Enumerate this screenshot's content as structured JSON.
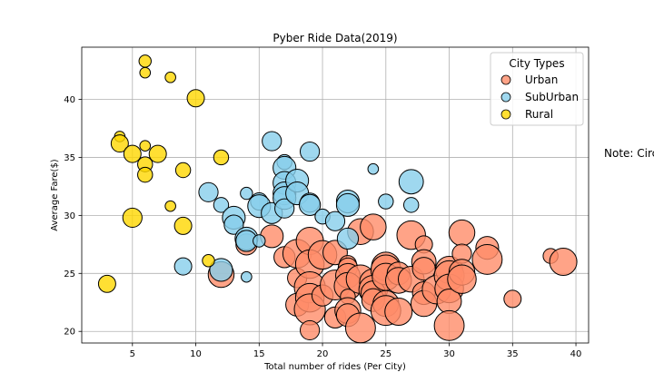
{
  "chart_data": {
    "type": "scatter",
    "title": "Pyber Ride Data(2019)",
    "xlabel": "Total number of rides (Per City)",
    "ylabel": "Average Fare($)",
    "xlim": [
      1,
      41
    ],
    "ylim": [
      19,
      44.5
    ],
    "xticks": [
      5,
      10,
      15,
      20,
      25,
      30,
      35,
      40
    ],
    "yticks": [
      20,
      25,
      30,
      35,
      40
    ],
    "grid": true,
    "legend_title": "City Types",
    "legend_position": "top-right",
    "note": "Note: Circ",
    "series": [
      {
        "name": "Urban",
        "color": "#FF8C69",
        "points": [
          {
            "x": 12,
            "y": 24.9,
            "s": 9
          },
          {
            "x": 14,
            "y": 27.5,
            "s": 6
          },
          {
            "x": 16,
            "y": 28.2,
            "s": 7
          },
          {
            "x": 17,
            "y": 26.4,
            "s": 6
          },
          {
            "x": 18,
            "y": 26.7,
            "s": 11
          },
          {
            "x": 18,
            "y": 24.6,
            "s": 5
          },
          {
            "x": 18,
            "y": 22.3,
            "s": 7
          },
          {
            "x": 19,
            "y": 27.8,
            "s": 10
          },
          {
            "x": 19,
            "y": 25.8,
            "s": 11
          },
          {
            "x": 19,
            "y": 23.8,
            "s": 13
          },
          {
            "x": 19,
            "y": 22.9,
            "s": 11
          },
          {
            "x": 19,
            "y": 21.9,
            "s": 13
          },
          {
            "x": 19,
            "y": 20.1,
            "s": 5
          },
          {
            "x": 20,
            "y": 26.6,
            "s": 11
          },
          {
            "x": 20,
            "y": 23.1,
            "s": 6
          },
          {
            "x": 21,
            "y": 26.8,
            "s": 8
          },
          {
            "x": 21,
            "y": 24.0,
            "s": 12
          },
          {
            "x": 21,
            "y": 21.2,
            "s": 6
          },
          {
            "x": 22,
            "y": 25.8,
            "s": 4
          },
          {
            "x": 22,
            "y": 25.5,
            "s": 5
          },
          {
            "x": 22,
            "y": 24.8,
            "s": 8
          },
          {
            "x": 22,
            "y": 23.9,
            "s": 10
          },
          {
            "x": 22,
            "y": 23.0,
            "s": 3
          },
          {
            "x": 22,
            "y": 21.8,
            "s": 9
          },
          {
            "x": 22,
            "y": 21.4,
            "s": 7
          },
          {
            "x": 23,
            "y": 28.6,
            "s": 9
          },
          {
            "x": 23,
            "y": 24.5,
            "s": 11
          },
          {
            "x": 23,
            "y": 20.3,
            "s": 12
          },
          {
            "x": 24,
            "y": 29.0,
            "s": 9
          },
          {
            "x": 24,
            "y": 24.2,
            "s": 10
          },
          {
            "x": 24,
            "y": 23.6,
            "s": 11
          },
          {
            "x": 24,
            "y": 23.3,
            "s": 8
          },
          {
            "x": 24,
            "y": 22.7,
            "s": 7
          },
          {
            "x": 25,
            "y": 25.6,
            "s": 11
          },
          {
            "x": 25,
            "y": 25.3,
            "s": 12
          },
          {
            "x": 25,
            "y": 24.7,
            "s": 10
          },
          {
            "x": 25,
            "y": 22.4,
            "s": 9
          },
          {
            "x": 25,
            "y": 21.8,
            "s": 12
          },
          {
            "x": 26,
            "y": 25.0,
            "s": 7
          },
          {
            "x": 26,
            "y": 24.4,
            "s": 9
          },
          {
            "x": 26,
            "y": 21.7,
            "s": 10
          },
          {
            "x": 27,
            "y": 28.3,
            "s": 11
          },
          {
            "x": 27,
            "y": 24.5,
            "s": 9
          },
          {
            "x": 28,
            "y": 27.5,
            "s": 4
          },
          {
            "x": 28,
            "y": 26.0,
            "s": 8
          },
          {
            "x": 28,
            "y": 25.4,
            "s": 7
          },
          {
            "x": 28,
            "y": 23.3,
            "s": 7
          },
          {
            "x": 28,
            "y": 22.4,
            "s": 9
          },
          {
            "x": 29,
            "y": 23.6,
            "s": 11
          },
          {
            "x": 30,
            "y": 25.3,
            "s": 10
          },
          {
            "x": 30,
            "y": 24.8,
            "s": 12
          },
          {
            "x": 30,
            "y": 23.7,
            "s": 11
          },
          {
            "x": 30,
            "y": 22.6,
            "s": 8
          },
          {
            "x": 30,
            "y": 20.5,
            "s": 12
          },
          {
            "x": 31,
            "y": 28.5,
            "s": 9
          },
          {
            "x": 31,
            "y": 26.7,
            "s": 5
          },
          {
            "x": 31,
            "y": 25.1,
            "s": 9
          },
          {
            "x": 31,
            "y": 24.5,
            "s": 11
          },
          {
            "x": 33,
            "y": 27.2,
            "s": 7
          },
          {
            "x": 33,
            "y": 26.2,
            "s": 12
          },
          {
            "x": 35,
            "y": 22.8,
            "s": 4
          },
          {
            "x": 38,
            "y": 26.5,
            "s": 3
          },
          {
            "x": 39,
            "y": 26.0,
            "s": 10
          }
        ]
      },
      {
        "name": "SubUrban",
        "color": "#87CEEB",
        "points": [
          {
            "x": 9,
            "y": 25.6,
            "s": 4
          },
          {
            "x": 11,
            "y": 32.0,
            "s": 5
          },
          {
            "x": 12,
            "y": 30.9,
            "s": 3
          },
          {
            "x": 12,
            "y": 25.3,
            "s": 7
          },
          {
            "x": 13,
            "y": 29.8,
            "s": 7
          },
          {
            "x": 13,
            "y": 29.2,
            "s": 5
          },
          {
            "x": 14,
            "y": 31.9,
            "s": 2
          },
          {
            "x": 14,
            "y": 28.0,
            "s": 7
          },
          {
            "x": 14,
            "y": 27.8,
            "s": 6
          },
          {
            "x": 14,
            "y": 24.7,
            "s": 1.5
          },
          {
            "x": 15,
            "y": 31.2,
            "s": 4
          },
          {
            "x": 15,
            "y": 30.8,
            "s": 7
          },
          {
            "x": 15,
            "y": 27.8,
            "s": 2
          },
          {
            "x": 16,
            "y": 36.4,
            "s": 5
          },
          {
            "x": 16,
            "y": 30.2,
            "s": 6
          },
          {
            "x": 17,
            "y": 34.6,
            "s": 3
          },
          {
            "x": 17,
            "y": 34.1,
            "s": 7
          },
          {
            "x": 17,
            "y": 32.8,
            "s": 7
          },
          {
            "x": 17,
            "y": 31.9,
            "s": 7
          },
          {
            "x": 17,
            "y": 31.5,
            "s": 7
          },
          {
            "x": 17,
            "y": 30.6,
            "s": 5
          },
          {
            "x": 18,
            "y": 33.0,
            "s": 7
          },
          {
            "x": 18,
            "y": 31.9,
            "s": 7
          },
          {
            "x": 19,
            "y": 35.5,
            "s": 5
          },
          {
            "x": 19,
            "y": 31.1,
            "s": 5
          },
          {
            "x": 19,
            "y": 30.9,
            "s": 6
          },
          {
            "x": 20,
            "y": 29.9,
            "s": 3
          },
          {
            "x": 21,
            "y": 29.5,
            "s": 5
          },
          {
            "x": 22,
            "y": 31.2,
            "s": 7
          },
          {
            "x": 22,
            "y": 30.9,
            "s": 7
          },
          {
            "x": 22,
            "y": 28.0,
            "s": 6
          },
          {
            "x": 24,
            "y": 34.0,
            "s": 1.5
          },
          {
            "x": 25,
            "y": 31.2,
            "s": 3
          },
          {
            "x": 27,
            "y": 32.9,
            "s": 8
          },
          {
            "x": 27,
            "y": 30.9,
            "s": 3
          }
        ]
      },
      {
        "name": "Rural",
        "color": "#FFD700",
        "points": [
          {
            "x": 3,
            "y": 24.1,
            "s": 4
          },
          {
            "x": 4,
            "y": 36.8,
            "s": 1.5
          },
          {
            "x": 4,
            "y": 36.2,
            "s": 4
          },
          {
            "x": 5,
            "y": 35.3,
            "s": 4
          },
          {
            "x": 5,
            "y": 29.8,
            "s": 5
          },
          {
            "x": 6,
            "y": 43.3,
            "s": 2
          },
          {
            "x": 6,
            "y": 42.3,
            "s": 1.5
          },
          {
            "x": 6,
            "y": 36.0,
            "s": 1.5
          },
          {
            "x": 6,
            "y": 34.4,
            "s": 3
          },
          {
            "x": 6,
            "y": 33.5,
            "s": 3
          },
          {
            "x": 7,
            "y": 35.3,
            "s": 4
          },
          {
            "x": 8,
            "y": 41.9,
            "s": 1.5
          },
          {
            "x": 8,
            "y": 30.8,
            "s": 1.5
          },
          {
            "x": 9,
            "y": 33.9,
            "s": 3
          },
          {
            "x": 9,
            "y": 29.1,
            "s": 4
          },
          {
            "x": 10,
            "y": 40.1,
            "s": 4
          },
          {
            "x": 11,
            "y": 26.1,
            "s": 2
          },
          {
            "x": 12,
            "y": 35.0,
            "s": 3
          }
        ]
      }
    ]
  }
}
